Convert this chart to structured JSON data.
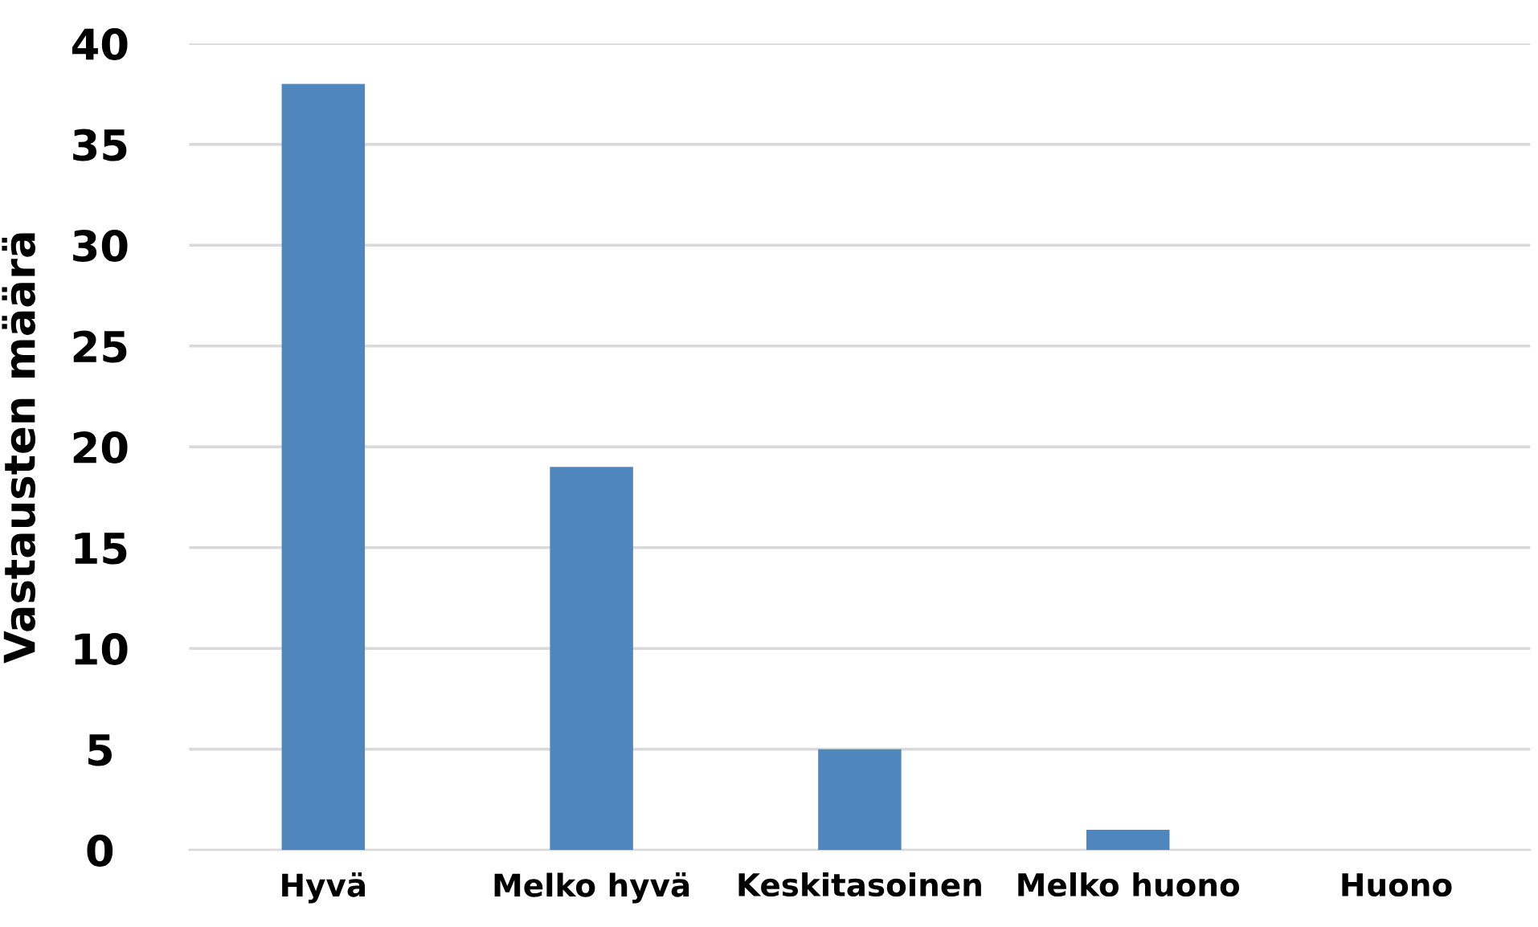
{
  "chart_data": {
    "type": "bar",
    "ylabel": "Vastausten määrä",
    "categories": [
      "Hyvä",
      "Melko hyvä",
      "Keskitasoinen",
      "Melko huono",
      "Huono"
    ],
    "values": [
      38,
      19,
      5,
      1,
      0
    ],
    "color": "#4f86be",
    "ylim": [
      0,
      40
    ],
    "yticks": [
      0,
      5,
      10,
      15,
      20,
      25,
      30,
      35,
      40
    ],
    "grid": "y"
  }
}
